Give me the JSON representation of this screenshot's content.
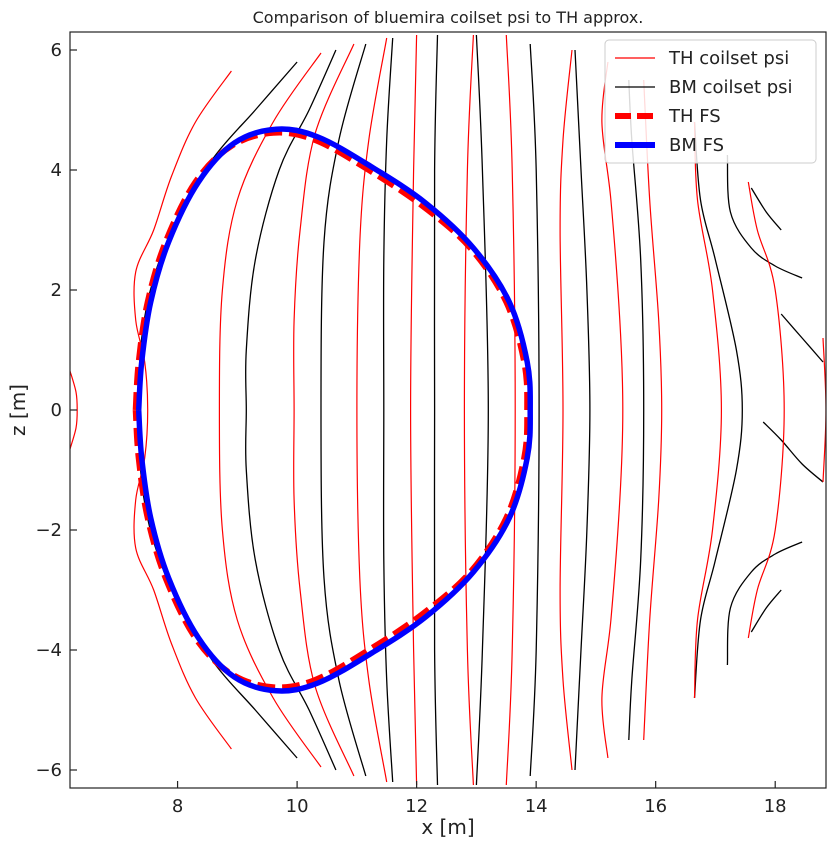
{
  "chart_data": {
    "type": "line",
    "title": "Comparison of bluemira coilset psi to TH approx.",
    "xlabel": "x [m]",
    "ylabel": "z [m]",
    "xlim": [
      6.2,
      18.85
    ],
    "ylim": [
      -6.3,
      6.3
    ],
    "xticks": [
      8,
      10,
      12,
      14,
      16,
      18
    ],
    "yticks": [
      -6,
      -4,
      -2,
      0,
      2,
      4,
      6
    ],
    "xtick_labels": [
      "8",
      "10",
      "12",
      "14",
      "16",
      "18"
    ],
    "ytick_labels": [
      "−6",
      "−4",
      "−2",
      "0",
      "2",
      "4",
      "6"
    ],
    "grid": false,
    "legend_position": "top-right",
    "colors": {
      "th": "#ff0000",
      "bm": "#000000",
      "th_fs": "#ff0000",
      "bm_fs": "#0000ff"
    },
    "series": [
      {
        "name": "TH coilset psi",
        "style": "thin-red",
        "curves": [
          [
            [
              6.2,
              -0.65
            ],
            [
              6.3,
              -0.3
            ],
            [
              6.32,
              0
            ],
            [
              6.3,
              0.3
            ],
            [
              6.2,
              0.65
            ]
          ],
          [
            [
              8.9,
              -5.65
            ],
            [
              8.3,
              -4.8
            ],
            [
              7.9,
              -3.9
            ],
            [
              7.6,
              -3.0
            ],
            [
              7.3,
              -2.3
            ],
            [
              7.3,
              -1.5
            ],
            [
              7.45,
              -0.8
            ],
            [
              7.5,
              0
            ],
            [
              7.45,
              0.8
            ],
            [
              7.3,
              1.5
            ],
            [
              7.3,
              2.3
            ],
            [
              7.6,
              3.0
            ],
            [
              7.9,
              3.9
            ],
            [
              8.3,
              4.8
            ],
            [
              8.9,
              5.65
            ]
          ],
          [
            [
              10.4,
              -5.95
            ],
            [
              9.6,
              -4.8
            ],
            [
              9.0,
              -3.5
            ],
            [
              8.75,
              -2.0
            ],
            [
              8.7,
              0
            ],
            [
              8.75,
              2.0
            ],
            [
              9.0,
              3.5
            ],
            [
              9.6,
              4.8
            ],
            [
              10.4,
              5.95
            ]
          ],
          [
            [
              10.95,
              -6.1
            ],
            [
              10.3,
              -4.6
            ],
            [
              10.05,
              -3.0
            ],
            [
              9.95,
              -1.5
            ],
            [
              9.95,
              0
            ],
            [
              9.95,
              1.5
            ],
            [
              10.05,
              3.0
            ],
            [
              10.3,
              4.6
            ],
            [
              10.95,
              6.1
            ]
          ],
          [
            [
              11.5,
              -6.2
            ],
            [
              11.2,
              -4.5
            ],
            [
              11.05,
              -2.8
            ],
            [
              11.0,
              0
            ],
            [
              11.05,
              2.8
            ],
            [
              11.2,
              4.5
            ],
            [
              11.5,
              6.2
            ]
          ],
          [
            [
              12.0,
              -6.25
            ],
            [
              11.95,
              -4.0
            ],
            [
              11.9,
              0
            ],
            [
              11.95,
              4.0
            ],
            [
              12.0,
              6.25
            ]
          ],
          [
            [
              12.95,
              -6.25
            ],
            [
              12.85,
              -4.0
            ],
            [
              12.8,
              0
            ],
            [
              12.85,
              4.0
            ],
            [
              12.95,
              6.25
            ]
          ],
          [
            [
              13.5,
              -6.25
            ],
            [
              13.6,
              -4.0
            ],
            [
              13.65,
              0
            ],
            [
              13.6,
              4.0
            ],
            [
              13.5,
              6.25
            ]
          ],
          [
            [
              14.6,
              -6.0
            ],
            [
              14.45,
              -4.5
            ],
            [
              14.4,
              -3.0
            ],
            [
              14.45,
              0
            ],
            [
              14.4,
              3.0
            ],
            [
              14.45,
              4.5
            ],
            [
              14.6,
              6.0
            ]
          ],
          [
            [
              15.2,
              -5.8
            ],
            [
              15.1,
              -4.8
            ],
            [
              15.25,
              -3.5
            ],
            [
              15.4,
              -1.5
            ],
            [
              15.45,
              0
            ],
            [
              15.4,
              1.5
            ],
            [
              15.25,
              3.5
            ],
            [
              15.1,
              4.8
            ],
            [
              15.2,
              5.8
            ]
          ],
          [
            [
              15.8,
              -5.5
            ],
            [
              15.9,
              -3.5
            ],
            [
              16.05,
              -1.5
            ],
            [
              16.1,
              0
            ],
            [
              16.05,
              1.5
            ],
            [
              15.9,
              3.5
            ],
            [
              15.8,
              5.5
            ]
          ],
          [
            [
              16.65,
              -4.8
            ],
            [
              16.7,
              -3.5
            ],
            [
              16.95,
              -2.0
            ],
            [
              17.1,
              0
            ],
            [
              16.95,
              2.0
            ],
            [
              16.7,
              3.5
            ],
            [
              16.65,
              4.8
            ]
          ],
          [
            [
              17.55,
              -3.8
            ],
            [
              17.7,
              -3.0
            ],
            [
              18.0,
              -2.0
            ],
            [
              18.15,
              0
            ],
            [
              18.0,
              2.0
            ],
            [
              17.7,
              3.0
            ],
            [
              17.55,
              3.8
            ]
          ],
          [
            [
              18.8,
              -1.2
            ],
            [
              18.85,
              0
            ],
            [
              18.8,
              1.2
            ]
          ]
        ]
      },
      {
        "name": "BM coilset psi",
        "style": "thin-black",
        "curves": [
          [
            [
              10.0,
              -5.8
            ],
            [
              9.3,
              -5.0
            ],
            [
              8.6,
              -4.2
            ],
            [
              8.0,
              -3.2
            ],
            [
              7.6,
              -2.2
            ],
            [
              7.4,
              -1.2
            ],
            [
              7.35,
              0
            ],
            [
              7.4,
              1.2
            ],
            [
              7.6,
              2.2
            ],
            [
              8.0,
              3.2
            ],
            [
              8.6,
              4.2
            ],
            [
              9.3,
              5.0
            ],
            [
              10.0,
              5.8
            ]
          ],
          [
            [
              10.65,
              -6.0
            ],
            [
              10.2,
              -5.0
            ],
            [
              9.7,
              -4.0
            ],
            [
              9.3,
              -2.5
            ],
            [
              9.15,
              -1.0
            ],
            [
              9.15,
              0
            ],
            [
              9.15,
              1.0
            ],
            [
              9.3,
              2.5
            ],
            [
              9.7,
              4.0
            ],
            [
              10.2,
              5.0
            ],
            [
              10.65,
              6.0
            ]
          ],
          [
            [
              11.15,
              -6.1
            ],
            [
              10.7,
              -4.5
            ],
            [
              10.45,
              -2.8
            ],
            [
              10.4,
              0
            ],
            [
              10.45,
              2.8
            ],
            [
              10.7,
              4.5
            ],
            [
              11.15,
              6.1
            ]
          ],
          [
            [
              11.6,
              -6.2
            ],
            [
              11.5,
              -4.5
            ],
            [
              11.45,
              -2.5
            ],
            [
              11.45,
              0
            ],
            [
              11.45,
              2.5
            ],
            [
              11.5,
              4.5
            ],
            [
              11.6,
              6.2
            ]
          ],
          [
            [
              12.35,
              -6.25
            ],
            [
              12.3,
              -4.0
            ],
            [
              12.3,
              0
            ],
            [
              12.3,
              4.0
            ],
            [
              12.35,
              6.25
            ]
          ],
          [
            [
              13.0,
              -6.25
            ],
            [
              13.1,
              -4.0
            ],
            [
              13.2,
              0
            ],
            [
              13.1,
              4.0
            ],
            [
              13.0,
              6.25
            ]
          ],
          [
            [
              13.9,
              -6.1
            ],
            [
              14.0,
              -4.0
            ],
            [
              14.05,
              0
            ],
            [
              14.0,
              4.0
            ],
            [
              13.9,
              6.1
            ]
          ],
          [
            [
              14.65,
              -6.0
            ],
            [
              14.75,
              -4.0
            ],
            [
              14.85,
              -2.0
            ],
            [
              14.9,
              0
            ],
            [
              14.85,
              2.0
            ],
            [
              14.75,
              4.0
            ],
            [
              14.65,
              6.0
            ]
          ],
          [
            [
              15.55,
              -5.5
            ],
            [
              15.6,
              -4.5
            ],
            [
              15.75,
              -2.5
            ],
            [
              15.8,
              0
            ],
            [
              15.75,
              2.5
            ],
            [
              15.6,
              4.5
            ],
            [
              15.55,
              5.5
            ]
          ],
          [
            [
              16.65,
              -4.8
            ],
            [
              16.75,
              -3.5
            ],
            [
              17.0,
              -2.5
            ],
            [
              17.35,
              -1.0
            ],
            [
              17.45,
              0
            ],
            [
              17.35,
              1.0
            ],
            [
              17.0,
              2.5
            ],
            [
              16.75,
              3.5
            ],
            [
              16.65,
              4.8
            ]
          ],
          [
            [
              17.2,
              -4.25
            ],
            [
              17.25,
              -3.3
            ],
            [
              17.6,
              -2.7
            ],
            [
              18.0,
              -2.4
            ],
            [
              18.45,
              -2.2
            ]
          ],
          [
            [
              17.6,
              -3.7
            ],
            [
              17.85,
              -3.3
            ],
            [
              18.1,
              -3.0
            ]
          ],
          [
            [
              18.8,
              -1.2
            ],
            [
              18.45,
              -0.9
            ],
            [
              18.1,
              -0.5
            ],
            [
              17.8,
              -0.2
            ]
          ],
          [
            [
              17.2,
              4.25
            ],
            [
              17.25,
              3.3
            ],
            [
              17.6,
              2.7
            ],
            [
              18.0,
              2.4
            ],
            [
              18.45,
              2.2
            ]
          ],
          [
            [
              17.6,
              3.7
            ],
            [
              17.85,
              3.3
            ],
            [
              18.1,
              3.0
            ]
          ],
          [
            [
              18.8,
              0.8
            ],
            [
              18.45,
              1.2
            ],
            [
              18.1,
              1.6
            ]
          ]
        ]
      },
      {
        "name": "TH FS",
        "style": "thick-red-dashed",
        "points": [
          [
            7.3,
            0
          ],
          [
            7.35,
            0.8
          ],
          [
            7.5,
            1.8
          ],
          [
            7.8,
            2.8
          ],
          [
            8.3,
            3.8
          ],
          [
            8.9,
            4.4
          ],
          [
            9.6,
            4.62
          ],
          [
            10.3,
            4.5
          ],
          [
            11.2,
            4.0
          ],
          [
            12.1,
            3.4
          ],
          [
            12.9,
            2.7
          ],
          [
            13.5,
            1.8
          ],
          [
            13.8,
            0.8
          ],
          [
            13.85,
            0
          ],
          [
            13.8,
            -0.8
          ],
          [
            13.5,
            -1.8
          ],
          [
            12.9,
            -2.7
          ],
          [
            12.1,
            -3.4
          ],
          [
            11.2,
            -4.0
          ],
          [
            10.3,
            -4.5
          ],
          [
            9.6,
            -4.62
          ],
          [
            8.9,
            -4.4
          ],
          [
            8.3,
            -3.8
          ],
          [
            7.8,
            -2.8
          ],
          [
            7.5,
            -1.8
          ],
          [
            7.35,
            -0.8
          ],
          [
            7.3,
            0
          ]
        ]
      },
      {
        "name": "BM FS",
        "style": "thick-blue",
        "points": [
          [
            7.35,
            0
          ],
          [
            7.4,
            0.8
          ],
          [
            7.55,
            1.8
          ],
          [
            7.85,
            2.8
          ],
          [
            8.35,
            3.8
          ],
          [
            8.95,
            4.45
          ],
          [
            9.65,
            4.68
          ],
          [
            10.35,
            4.55
          ],
          [
            11.25,
            4.05
          ],
          [
            12.15,
            3.45
          ],
          [
            12.95,
            2.7
          ],
          [
            13.55,
            1.8
          ],
          [
            13.85,
            0.8
          ],
          [
            13.9,
            0
          ],
          [
            13.85,
            -0.8
          ],
          [
            13.55,
            -1.8
          ],
          [
            12.95,
            -2.7
          ],
          [
            12.15,
            -3.45
          ],
          [
            11.25,
            -4.05
          ],
          [
            10.35,
            -4.55
          ],
          [
            9.65,
            -4.68
          ],
          [
            8.95,
            -4.45
          ],
          [
            8.35,
            -3.8
          ],
          [
            7.85,
            -2.8
          ],
          [
            7.55,
            -1.8
          ],
          [
            7.4,
            -0.8
          ],
          [
            7.35,
            0
          ]
        ]
      }
    ]
  }
}
